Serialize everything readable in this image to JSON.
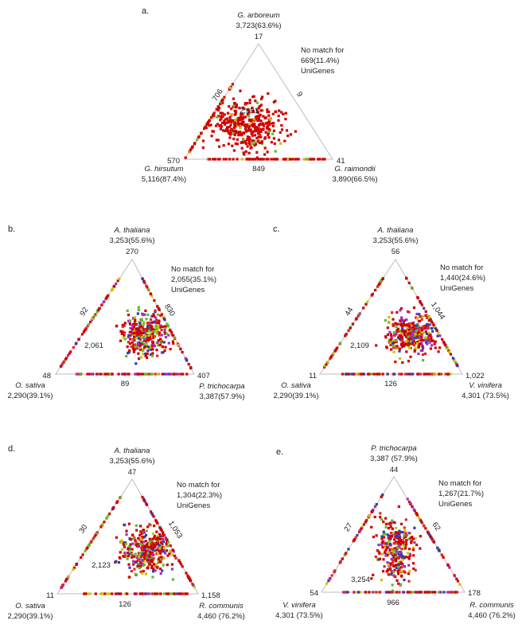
{
  "colors": {
    "points": [
      "#d00000",
      "#d00000",
      "#d00000",
      "#cc0000",
      "#e3262a",
      "#c8c400",
      "#5fbf2a",
      "#2b3fb5",
      "#a030c0"
    ],
    "triangle": "#bdbdbd"
  },
  "chart_data": [
    {
      "type": "scatter",
      "subtype": "ternary",
      "panel_label": "a.",
      "top": {
        "name": "G. arboreum",
        "count": "3,723(63.6%)",
        "specific": "17"
      },
      "left": {
        "name": "G. hirsutum",
        "count": "5,116(87.4%)",
        "specific": "570"
      },
      "right": {
        "name": "G. raimondii",
        "count": "3,890(66.5%)",
        "specific": "41"
      },
      "edge_left": "706",
      "edge_right": "9",
      "edge_bottom": "849",
      "center": "2,991",
      "no_match": [
        "No match for",
        "669(11.4%)",
        "UniGenes"
      ]
    },
    {
      "type": "scatter",
      "subtype": "ternary",
      "panel_label": "b.",
      "top": {
        "name": "A. thaliana",
        "count": "3,253(55.6%)",
        "specific": "270"
      },
      "left": {
        "name": "O. sativa",
        "count": "2,290(39.1%)",
        "specific": "48"
      },
      "right": {
        "name": "P. trichocarpa",
        "count": "3,387(57.9%)",
        "specific": "407"
      },
      "edge_left": "92",
      "edge_right": "830",
      "edge_bottom": "89",
      "center": "2,061",
      "no_match": [
        "No match for",
        "2,055(35.1%)",
        "UniGenes"
      ]
    },
    {
      "type": "scatter",
      "subtype": "ternary",
      "panel_label": "c.",
      "top": {
        "name": "A. thaliana",
        "count": "3,253(55.6%)",
        "specific": "56"
      },
      "left": {
        "name": "O. sativa",
        "count": "2,290(39.1%)",
        "specific": "11"
      },
      "right": {
        "name": "V. vinifera",
        "count": "4,301 (73.5%)",
        "specific": "1,022"
      },
      "edge_left": "44",
      "edge_right": "1,044",
      "edge_bottom": "126",
      "center": "2,109",
      "no_match": [
        "No match for",
        "1,440(24.6%)",
        "UniGenes"
      ]
    },
    {
      "type": "scatter",
      "subtype": "ternary",
      "panel_label": "d.",
      "top": {
        "name": "A. thaliana",
        "count": "3,253(55.6%)",
        "specific": "47"
      },
      "left": {
        "name": "O. sativa",
        "count": "2,290(39.1%)",
        "specific": "11"
      },
      "right": {
        "name": "R. communis",
        "count": "4,460 (76.2%)",
        "specific": "1,158"
      },
      "edge_left": "30",
      "edge_right": "1,053",
      "edge_bottom": "126",
      "center": "2,123",
      "no_match": [
        "No match for",
        "1,304(22.3%)",
        "UniGenes"
      ]
    },
    {
      "type": "scatter",
      "subtype": "ternary",
      "panel_label": "e.",
      "top": {
        "name": "P. trichocarpa",
        "count": "3,387 (57.9%)",
        "specific": "44"
      },
      "left": {
        "name": "V. vinifera",
        "count": "4,301 (73.5%)",
        "specific": "54"
      },
      "right": {
        "name": "R. communis",
        "count": "4,460 (76.2%)",
        "specific": "178"
      },
      "edge_left": "27",
      "edge_right": "62",
      "edge_bottom": "966",
      "center": "3,254",
      "no_match": [
        "No match for",
        "1,267(21.7%)",
        "UniGenes"
      ]
    }
  ]
}
